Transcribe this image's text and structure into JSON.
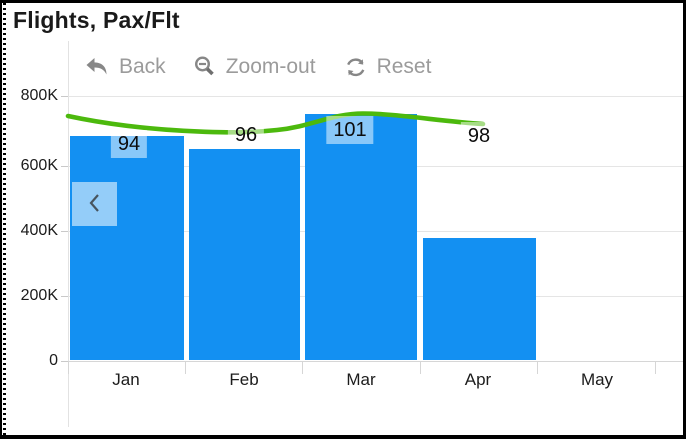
{
  "widget": {
    "title": "Flights, Pax/Flt"
  },
  "toolbar": {
    "back_label": "Back",
    "zoom_out_label": "Zoom-out",
    "reset_label": "Reset"
  },
  "scroll": {
    "left_chevron_icon": "chevron-left"
  },
  "colors": {
    "bar": "#1390F2",
    "line": "#4CB90D",
    "label_background": "rgba(255,255,255,0.5)",
    "toolbar_text": "#9b9b9b",
    "grid": "#e5e5e5",
    "axis_text": "#1c1c1c"
  },
  "chart_data": {
    "type": "bar",
    "title": "Flights, Pax/Flt",
    "categories": [
      "Jan",
      "Feb",
      "Mar",
      "Apr",
      "May"
    ],
    "series": [
      {
        "name": "Flights",
        "type": "bar",
        "values": [
          680000,
          640000,
          745000,
          370000,
          null
        ]
      },
      {
        "name": "Pax/Flt",
        "type": "line",
        "values": [
          94,
          96,
          101,
          98,
          null
        ]
      }
    ],
    "point_labels": [
      "94",
      "96",
      "101",
      "98"
    ],
    "y_ticks": [
      "800K",
      "600K",
      "400K",
      "200K",
      "0"
    ],
    "ylim": [
      0,
      800000
    ],
    "xlabel": "",
    "ylabel": "",
    "grid": "horizontal",
    "legend": "none"
  }
}
